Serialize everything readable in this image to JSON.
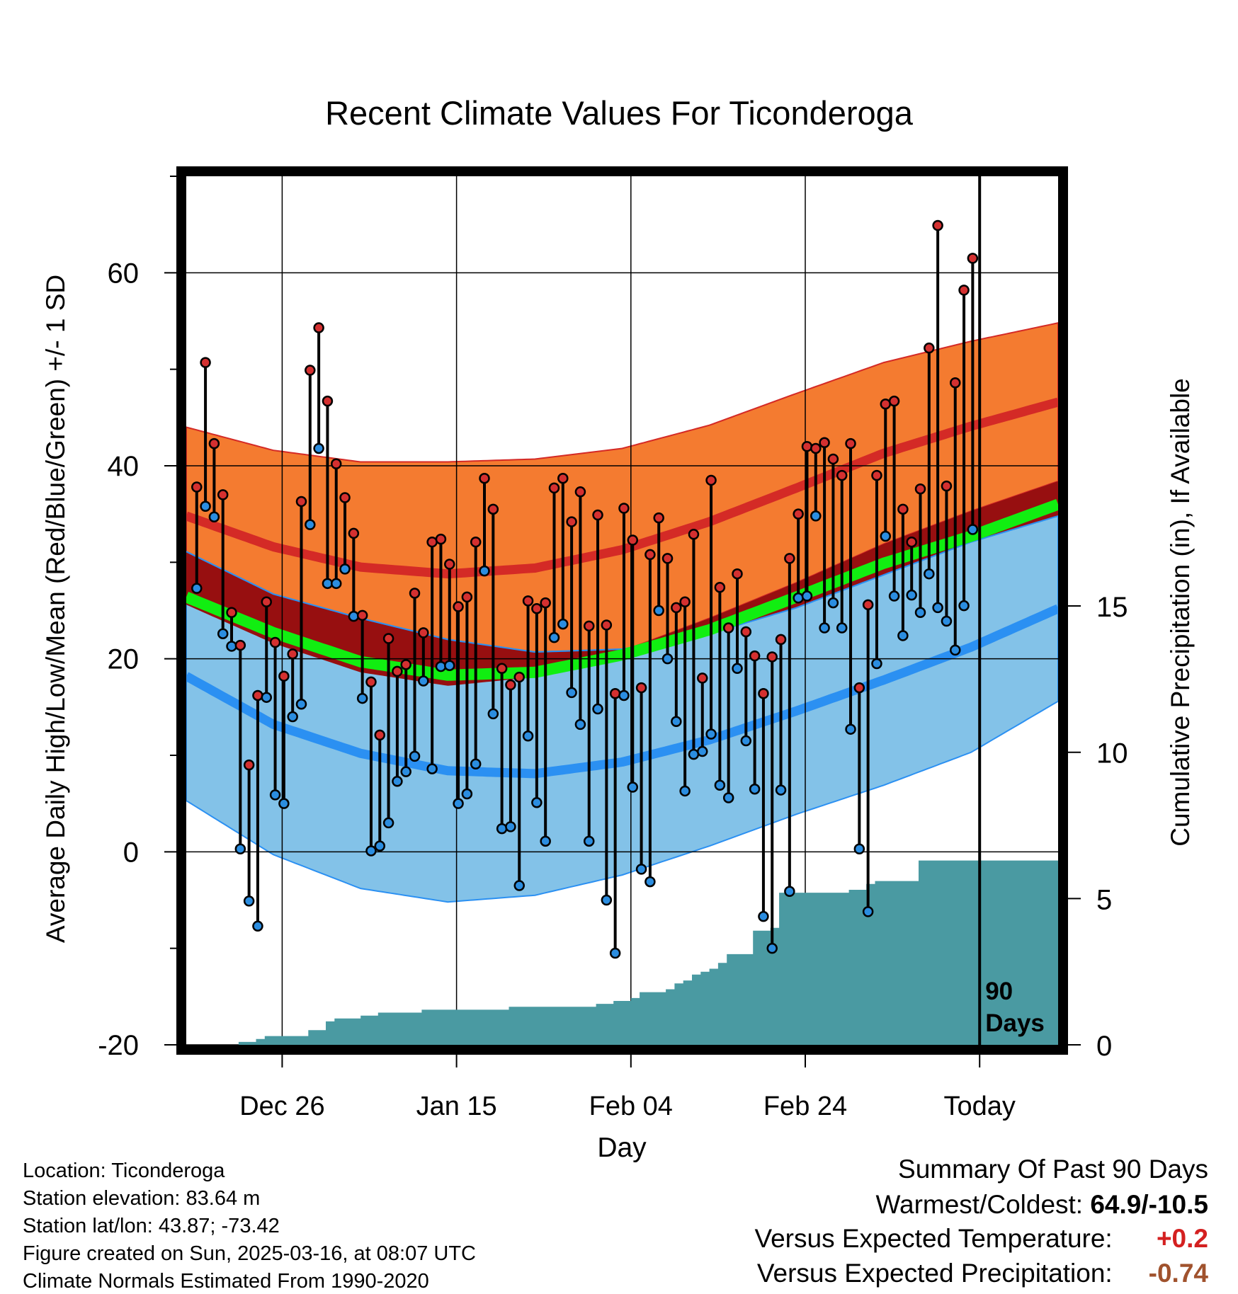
{
  "chart_data": {
    "type": "line",
    "title": "Recent Climate Values For Ticonderoga",
    "xlabel": "Day",
    "ylabel": "Average Daily High/Low/Mean (Red/Blue/Green) +/- 1 SD",
    "y2label": "Cumulative Precipitation (in), If Available",
    "ylim": [
      -20,
      70
    ],
    "y2lim": [
      0,
      30
    ],
    "yticks": [
      "60",
      "40",
      "20",
      "0",
      "-20"
    ],
    "ytick_values": [
      60,
      40,
      20,
      0,
      -20
    ],
    "y2ticks": [
      "15",
      "10",
      "5",
      "0"
    ],
    "y2tick_values": [
      15,
      10,
      5,
      0
    ],
    "xticks": [
      "Dec 26",
      "Jan 15",
      "Feb 04",
      "Feb 24",
      "Today"
    ],
    "xtick_days": [
      11,
      31,
      51,
      71,
      91
    ],
    "days_window_label": "90 Days",
    "grid": true,
    "colors": {
      "high_band": "#f47b30",
      "high_line": "#d42a26",
      "low_band": "#83c2e8",
      "low_line": "#2b90f2",
      "mean_line": "#11ee11",
      "overlap_band": "#970f10",
      "precip": "#4a9aa2",
      "high_dot": "#d43030",
      "low_dot": "#2b8de0"
    },
    "normals": {
      "day": [
        0,
        10,
        20,
        30,
        40,
        50,
        60,
        70,
        80,
        90,
        100
      ],
      "high_mean": [
        34.8,
        31.6,
        29.5,
        28.8,
        29.4,
        31.3,
        34.2,
        37.7,
        41.3,
        44.1,
        46.6
      ],
      "high_sd": [
        9.2,
        10.0,
        10.9,
        11.6,
        11.3,
        10.5,
        10.0,
        9.8,
        9.4,
        8.8,
        8.2
      ],
      "low_mean": [
        18.2,
        13.2,
        10.2,
        8.4,
        8.1,
        9.3,
        11.6,
        14.6,
        17.8,
        21.2,
        25.2
      ],
      "low_sd": [
        12.9,
        13.5,
        14.0,
        13.6,
        12.6,
        11.7,
        11.0,
        10.7,
        10.9,
        10.9,
        9.6
      ],
      "mean": [
        26.4,
        22.7,
        19.7,
        18.3,
        18.6,
        20.4,
        23.0,
        26.4,
        29.9,
        32.7,
        36.0
      ]
    },
    "series": [
      {
        "name": "High",
        "x": [
          1,
          2,
          3,
          4,
          5,
          6,
          7,
          8,
          9,
          10,
          11,
          12,
          13,
          14,
          15,
          16,
          17,
          18,
          19,
          20,
          21,
          22,
          23,
          24,
          25,
          26,
          27,
          28,
          29,
          30,
          31,
          32,
          33,
          34,
          35,
          36,
          37,
          38,
          39,
          40,
          41,
          42,
          43,
          44,
          45,
          46,
          47,
          48,
          49,
          50,
          51,
          52,
          53,
          54,
          55,
          56,
          57,
          58,
          59,
          60,
          61,
          62,
          63,
          64,
          65,
          66,
          67,
          68,
          69,
          70,
          71,
          72,
          73,
          74,
          75,
          76,
          77,
          78,
          79,
          80,
          81,
          82,
          83,
          84,
          85,
          86,
          87,
          88,
          89,
          90
        ],
        "values": [
          37.8,
          50.7,
          42.3,
          37.0,
          24.8,
          21.4,
          9.0,
          16.2,
          25.9,
          21.7,
          18.2,
          20.5,
          36.3,
          49.9,
          54.3,
          46.7,
          40.2,
          36.7,
          33.0,
          24.5,
          17.6,
          12.1,
          22.1,
          18.7,
          19.4,
          26.8,
          22.7,
          32.1,
          32.4,
          29.8,
          25.4,
          26.4,
          32.1,
          38.7,
          35.5,
          19.0,
          17.3,
          18.1,
          26.0,
          25.2,
          25.8,
          37.7,
          38.7,
          34.2,
          37.3,
          23.4,
          34.9,
          23.5,
          16.4,
          35.6,
          32.3,
          17.0,
          30.8,
          34.6,
          30.4,
          25.3,
          25.9,
          32.9,
          18.0,
          38.5,
          27.4,
          23.2,
          28.8,
          22.8,
          20.3,
          16.4,
          20.2,
          22.0,
          30.4,
          35.0,
          42.0,
          41.8,
          42.4,
          40.7,
          39.0,
          42.3,
          17.0,
          25.6,
          39.0,
          46.4,
          46.7,
          35.5,
          32.1,
          37.6,
          52.2,
          64.9,
          37.9,
          48.6,
          58.2,
          61.5
        ]
      },
      {
        "name": "Low",
        "x": [
          1,
          2,
          3,
          4,
          5,
          6,
          7,
          8,
          9,
          10,
          11,
          12,
          13,
          14,
          15,
          16,
          17,
          18,
          19,
          20,
          21,
          22,
          23,
          24,
          25,
          26,
          27,
          28,
          29,
          30,
          31,
          32,
          33,
          34,
          35,
          36,
          37,
          38,
          39,
          40,
          41,
          42,
          43,
          44,
          45,
          46,
          47,
          48,
          49,
          50,
          51,
          52,
          53,
          54,
          55,
          56,
          57,
          58,
          59,
          60,
          61,
          62,
          63,
          64,
          65,
          66,
          67,
          68,
          69,
          70,
          71,
          72,
          73,
          74,
          75,
          76,
          77,
          78,
          79,
          80,
          81,
          82,
          83,
          84,
          85,
          86,
          87,
          88,
          89,
          90
        ],
        "values": [
          27.3,
          35.8,
          34.7,
          22.6,
          21.3,
          0.3,
          -5.1,
          -7.7,
          16.0,
          5.9,
          5.0,
          14.0,
          15.3,
          33.9,
          41.8,
          27.8,
          27.8,
          29.3,
          24.4,
          15.9,
          0.1,
          0.6,
          3.0,
          7.3,
          8.3,
          9.9,
          17.7,
          8.6,
          19.2,
          19.3,
          5.0,
          6.0,
          9.1,
          29.1,
          14.3,
          2.4,
          2.6,
          -3.5,
          12.0,
          5.1,
          1.1,
          22.2,
          23.6,
          16.5,
          13.2,
          1.1,
          14.8,
          -5.0,
          -10.5,
          16.2,
          6.7,
          -1.8,
          -3.1,
          25.0,
          20.0,
          13.5,
          6.3,
          10.1,
          10.4,
          12.2,
          6.9,
          5.6,
          19.0,
          11.5,
          6.5,
          -6.7,
          -10.0,
          6.4,
          -4.1,
          26.3,
          26.5,
          34.8,
          23.2,
          25.8,
          23.2,
          12.7,
          0.3,
          -6.2,
          19.5,
          32.7,
          26.5,
          22.4,
          26.6,
          24.8,
          28.8,
          25.3,
          23.9,
          20.9,
          25.5,
          33.4
        ]
      }
    ],
    "precip": {
      "x": [
        0,
        4,
        6,
        7,
        8,
        9,
        10,
        11,
        12,
        13,
        14,
        15,
        16,
        17,
        18,
        19,
        20,
        21,
        22,
        23,
        24,
        25,
        26,
        27,
        28,
        29,
        30,
        31,
        32,
        33,
        34,
        35,
        36,
        37,
        38,
        39,
        40,
        41,
        42,
        43,
        44,
        45,
        46,
        47,
        48,
        49,
        50,
        51,
        52,
        53,
        54,
        55,
        56,
        57,
        58,
        59,
        60,
        61,
        62,
        63,
        64,
        65,
        66,
        67,
        68,
        69,
        70,
        71,
        72,
        73,
        74,
        75,
        76,
        77,
        78,
        79,
        80,
        81,
        82,
        83,
        84,
        85,
        86,
        87,
        88,
        89,
        90,
        91,
        92,
        93,
        94,
        95,
        96,
        97,
        98,
        99,
        100
      ],
      "values": [
        0,
        0,
        0.1,
        0.1,
        0.2,
        0.3,
        0.3,
        0.3,
        0.3,
        0.3,
        0.5,
        0.5,
        0.8,
        0.9,
        0.9,
        0.9,
        1.0,
        1.0,
        1.1,
        1.1,
        1.1,
        1.1,
        1.1,
        1.2,
        1.2,
        1.2,
        1.2,
        1.2,
        1.2,
        1.2,
        1.2,
        1.2,
        1.2,
        1.3,
        1.3,
        1.3,
        1.3,
        1.3,
        1.3,
        1.3,
        1.3,
        1.3,
        1.3,
        1.4,
        1.4,
        1.5,
        1.5,
        1.6,
        1.8,
        1.8,
        1.8,
        1.9,
        2.1,
        2.2,
        2.4,
        2.5,
        2.6,
        2.8,
        3.1,
        3.1,
        3.1,
        3.9,
        3.9,
        4.0,
        5.2,
        5.2,
        5.2,
        5.2,
        5.2,
        5.2,
        5.2,
        5.2,
        5.3,
        5.3,
        5.5,
        5.6,
        5.6,
        5.6,
        5.6,
        5.6,
        6.3,
        6.3,
        6.3,
        6.3,
        6.3,
        6.3,
        6.3,
        6.3,
        6.3,
        6.3,
        6.3,
        6.3,
        6.3,
        6.3,
        6.3,
        6.3,
        6.3
      ]
    }
  },
  "info": {
    "location": "Location: Ticonderoga",
    "elevation": "Station elevation: 83.64 m",
    "latlon": "Station lat/lon: 43.87; -73.42",
    "created": "Figure created on Sun, 2025-03-16, at 08:07 UTC",
    "normals": "Climate Normals Estimated From 1990-2020"
  },
  "summary": {
    "title": "Summary Of Past 90 Days",
    "warmest_coldest_label": "Warmest/Coldest:",
    "warmest_coldest_value": "64.9/-10.5",
    "temp_label": "Versus Expected Temperature:",
    "temp_value": "+0.2",
    "temp_color": "#d42020",
    "precip_label": "Versus Expected Precipitation:",
    "precip_value": "-0.74",
    "precip_color": "#a0522d"
  }
}
